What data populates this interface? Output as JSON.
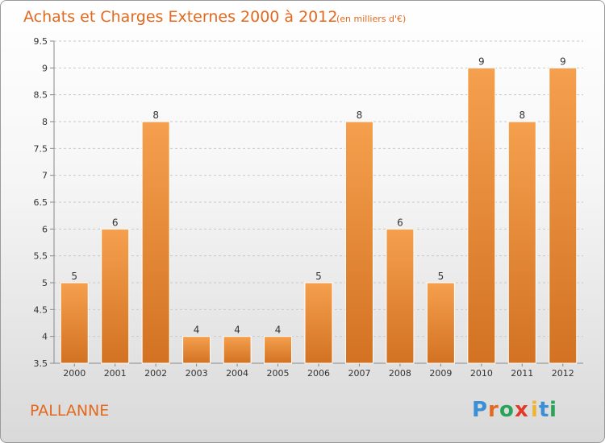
{
  "chart_data": {
    "type": "bar",
    "title": "Achats et Charges Externes 2000 à 2012",
    "subtitle": "(en milliers d'€)",
    "categories": [
      "2000",
      "2001",
      "2002",
      "2003",
      "2004",
      "2005",
      "2006",
      "2007",
      "2008",
      "2009",
      "2010",
      "2011",
      "2012"
    ],
    "values": [
      5,
      6,
      8,
      4,
      4,
      4,
      5,
      8,
      6,
      5,
      9,
      8,
      9
    ],
    "ylim": [
      3.5,
      9.5
    ],
    "yticks": [
      "3.5",
      "4",
      "4.5",
      "5",
      "5.5",
      "6",
      "6.5",
      "7",
      "7.5",
      "8",
      "8.5",
      "9",
      "9.5"
    ],
    "grid": "horizontal dashed",
    "bar_color": "#f5a04e",
    "bar_color_dark": "#d27222"
  },
  "commune": "PALLANNE",
  "brand": {
    "letters": [
      "P",
      "r",
      "o",
      "x",
      "i",
      "t",
      "i"
    ],
    "colors": [
      "#3b8fd6",
      "#e2691e",
      "#2aa35a",
      "#e23a2a",
      "#f2b233",
      "#3b8fd6",
      "#2aa35a"
    ]
  }
}
